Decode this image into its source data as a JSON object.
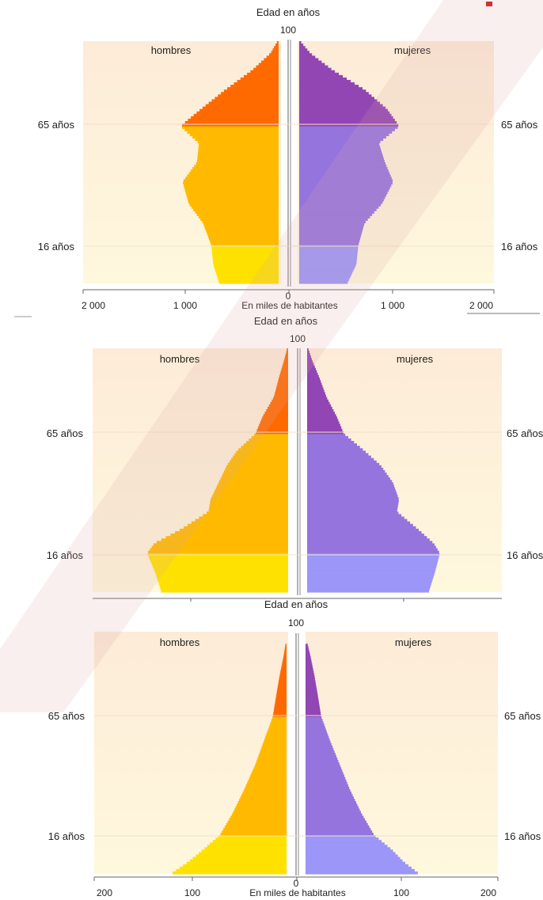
{
  "colors": {
    "male_young": "#FFE100",
    "male_adult": "#FFBA00",
    "male_old": "#FF6A00",
    "female_young": "#9B96F8",
    "female_adult": "#9574DE",
    "female_old": "#9146B4",
    "background_top": "#FDEBD8",
    "background_bottom": "#FEF8DD",
    "axis": "#666666",
    "watermark": "#e8c9c0"
  },
  "chart_data": [
    {
      "type": "pyramid",
      "title": "Edad en años",
      "age_top_label": "100",
      "male_label": "hombres",
      "female_label": "mujeres",
      "age_band_labels": [
        "65 años",
        "16 años"
      ],
      "band_ages": [
        65,
        16
      ],
      "xlim": [
        0,
        2000
      ],
      "x_ticks": [
        "2 000",
        "1 000",
        "0",
        "1 000",
        "2 000"
      ],
      "x_tick_values": [
        -2000,
        -1000,
        0,
        1000,
        2000
      ],
      "xlabel": "En miles de habitantes",
      "ages": [
        0,
        8,
        16,
        25,
        33,
        42,
        50,
        58,
        65,
        72,
        80,
        88,
        95,
        100
      ],
      "male": [
        580,
        640,
        660,
        740,
        880,
        940,
        800,
        780,
        960,
        760,
        520,
        260,
        80,
        10
      ],
      "female": [
        470,
        560,
        580,
        640,
        810,
        920,
        840,
        780,
        980,
        860,
        640,
        330,
        110,
        10
      ]
    },
    {
      "type": "pyramid",
      "title": "Edad en años",
      "age_top_label": "100",
      "male_label": "hombres",
      "female_label": "mujeres",
      "age_band_labels": [
        "65 años",
        "16 años"
      ],
      "band_ages": [
        65,
        16
      ],
      "xlim": [
        0,
        2000
      ],
      "x_ticks": [],
      "x_tick_values": [],
      "xlabel": "",
      "ages": [
        0,
        8,
        16,
        20,
        26,
        33,
        38,
        45,
        52,
        58,
        65,
        72,
        80,
        88,
        95,
        100
      ],
      "male": [
        1240,
        1300,
        1380,
        1310,
        1040,
        780,
        760,
        680,
        600,
        500,
        320,
        250,
        140,
        90,
        40,
        10
      ],
      "female": [
        1190,
        1250,
        1300,
        1240,
        1080,
        880,
        900,
        840,
        720,
        560,
        360,
        290,
        190,
        120,
        50,
        10
      ]
    },
    {
      "type": "pyramid",
      "title": "Edad en años",
      "age_top_label": "100",
      "male_label": "hombres",
      "female_label": "mujeres",
      "age_band_labels": [
        "65 años",
        "16 años"
      ],
      "band_ages": [
        65,
        16
      ],
      "xlim": [
        0,
        200
      ],
      "x_ticks": [
        "200",
        "100",
        "0",
        "100",
        "200"
      ],
      "x_tick_values": [
        -200,
        -100,
        0,
        100,
        200
      ],
      "xlabel": "En miles de habitantes",
      "ages": [
        0,
        5,
        10,
        16,
        25,
        35,
        45,
        55,
        65,
        75,
        82,
        90,
        95
      ],
      "male": [
        118,
        100,
        85,
        68,
        55,
        43,
        32,
        23,
        14,
        10,
        7,
        3,
        1
      ],
      "female": [
        116,
        100,
        88,
        70,
        57,
        45,
        35,
        25,
        16,
        12,
        9,
        5,
        2
      ]
    }
  ]
}
